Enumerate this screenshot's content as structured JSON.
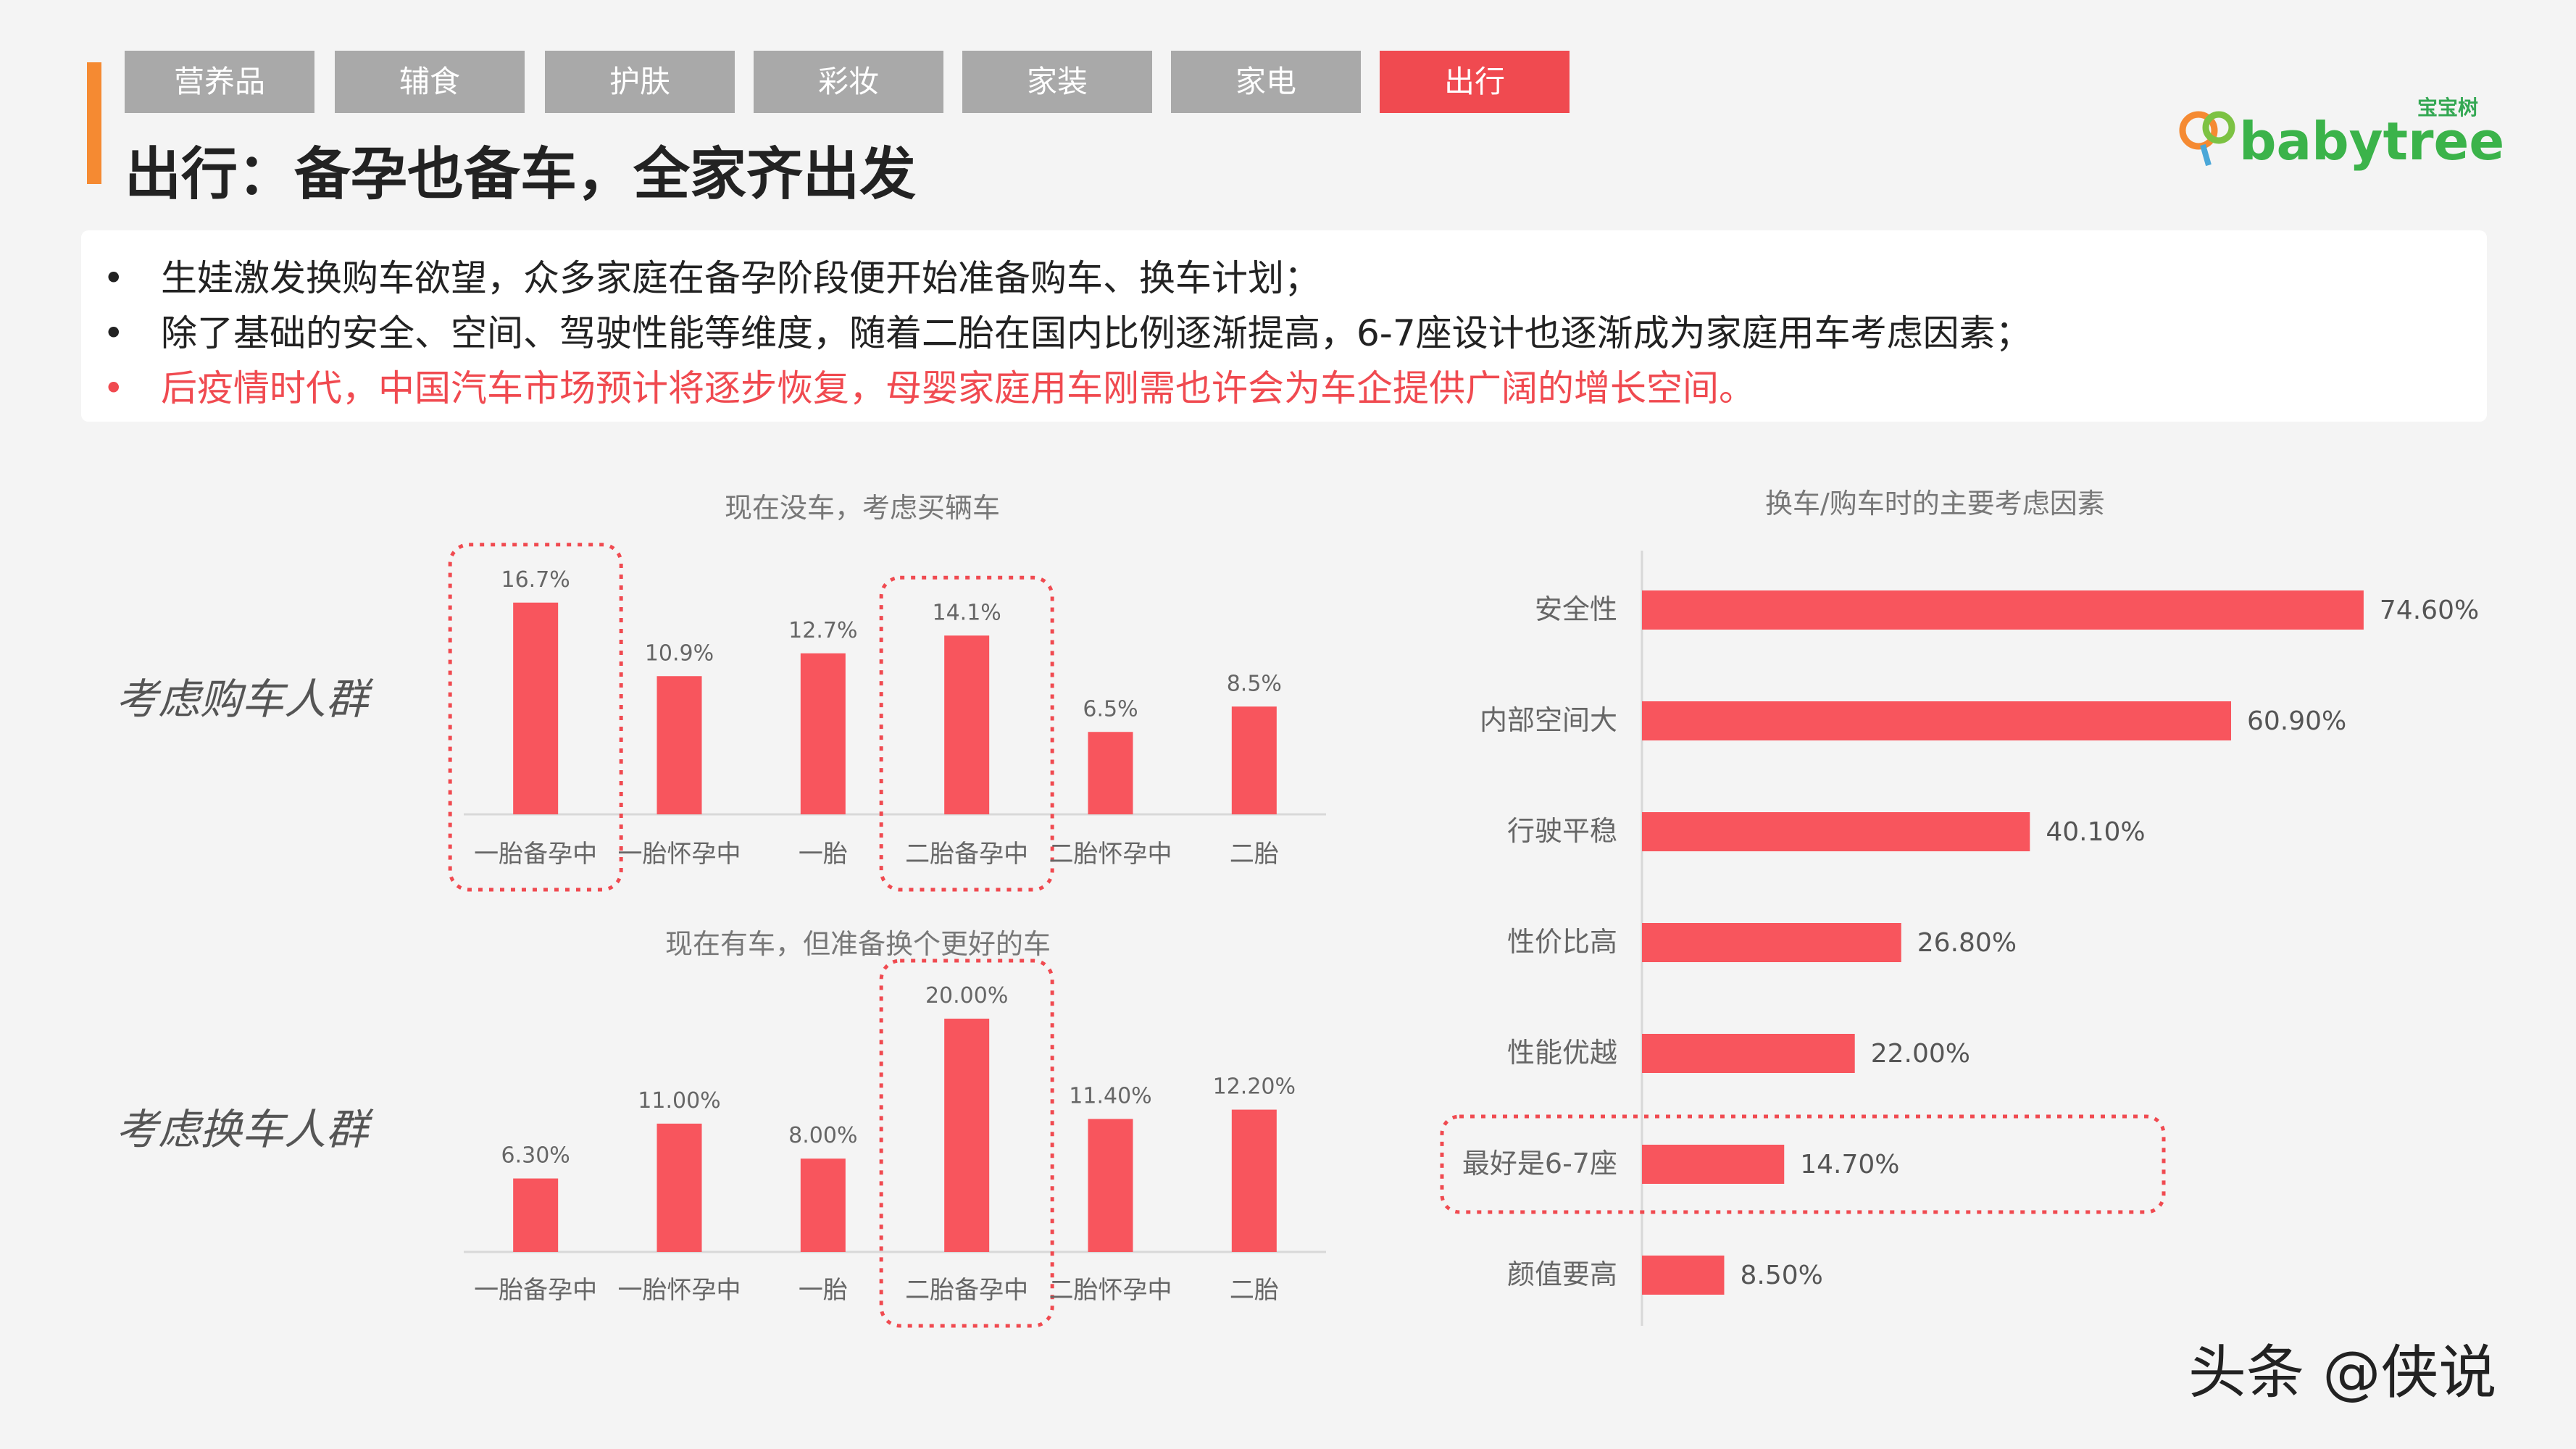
{
  "tabs": [
    {
      "label": "营养品"
    },
    {
      "label": "辅食"
    },
    {
      "label": "护肤"
    },
    {
      "label": "彩妆"
    },
    {
      "label": "家装"
    },
    {
      "label": "家电"
    },
    {
      "label": "出行"
    }
  ],
  "active_tab": 6,
  "page_title": "出行：备孕也备车，全家齐出发",
  "logo": {
    "brand": "babytree",
    "cn": "宝宝树"
  },
  "bullets": [
    {
      "dot": "•",
      "text": "生娃激发换购车欲望，众多家庭在备孕阶段便开始准备购车、换车计划；"
    },
    {
      "dot": "•",
      "text": "除了基础的安全、空间、驾驶性能等维度，随着二胎在国内比例逐渐提高，6-7座设计也逐渐成为家庭用车考虑因素；"
    },
    {
      "dot": "•",
      "text": "后疫情时代，中国汽车市场预计将逐步恢复，母婴家庭用车刚需也许会为车企提供广阔的增长空间。"
    }
  ],
  "group_labels": {
    "buy": "考虑购车人群",
    "replace": "考虑换车人群"
  },
  "colors": {
    "bar": "#f8555d",
    "accent": "#f58a32",
    "tab_active": "#f04a50",
    "tab": "#a9a9a9",
    "highlight_dash": "#f04a50"
  },
  "chart_data": [
    {
      "type": "bar",
      "title": "现在没车，考虑买辆车",
      "categories": [
        "一胎备孕中",
        "一胎怀孕中",
        "一胎",
        "二胎备孕中",
        "二胎怀孕中",
        "二胎"
      ],
      "values": [
        16.7,
        10.9,
        12.7,
        14.1,
        6.5,
        8.5
      ],
      "labels": [
        "16.7%",
        "10.9%",
        "12.7%",
        "14.1%",
        "6.5%",
        "8.5%"
      ],
      "highlighted": [
        0,
        3
      ],
      "ylim": [
        0,
        20
      ]
    },
    {
      "type": "bar",
      "title": "现在有车，但准备换个更好的车",
      "categories": [
        "一胎备孕中",
        "一胎怀孕中",
        "一胎",
        "二胎备孕中",
        "二胎怀孕中",
        "二胎"
      ],
      "values": [
        6.3,
        11.0,
        8.0,
        20.0,
        11.4,
        12.2
      ],
      "labels": [
        "6.30%",
        "11.00%",
        "8.00%",
        "20.00%",
        "11.40%",
        "12.20%"
      ],
      "highlighted": [
        3
      ],
      "ylim": [
        0,
        22
      ]
    },
    {
      "type": "bar",
      "orientation": "horizontal",
      "title": "换车/购车时的主要考虑因素",
      "categories": [
        "安全性",
        "内部空间大",
        "行驶平稳",
        "性价比高",
        "性能优越",
        "最好是6-7座",
        "颜值要高"
      ],
      "values": [
        74.6,
        60.9,
        40.1,
        26.8,
        22.0,
        14.7,
        8.5
      ],
      "labels": [
        "74.60%",
        "60.90%",
        "40.10%",
        "26.80%",
        "22.00%",
        "14.70%",
        "8.50%"
      ],
      "highlighted": [
        5
      ],
      "xlim": [
        0,
        75
      ]
    }
  ],
  "watermark": "头条 @侠说"
}
